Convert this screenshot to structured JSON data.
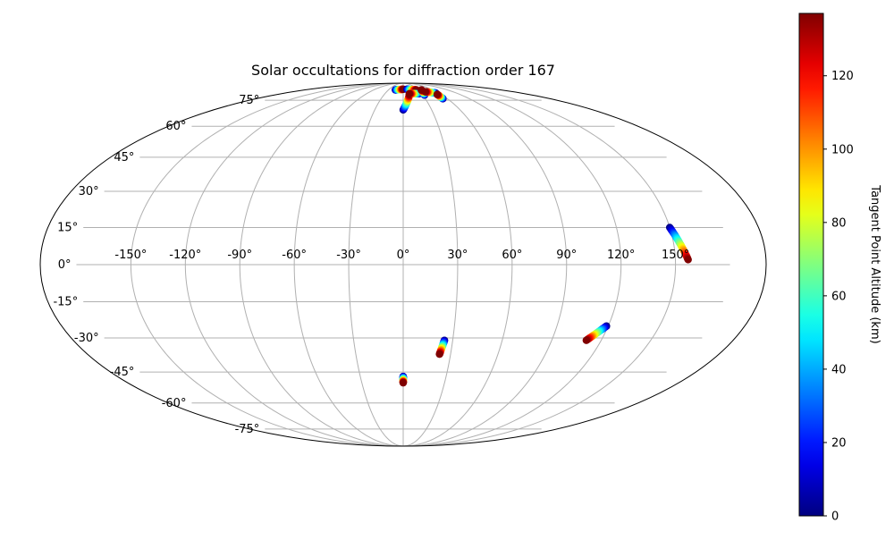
{
  "chart_data": {
    "type": "scatter",
    "projection": "mollweide",
    "title": "Solar occultations for diffraction order 167",
    "grid": true,
    "lon_ticks": [
      -150,
      -120,
      -90,
      -60,
      -30,
      0,
      30,
      60,
      90,
      120,
      150
    ],
    "lon_tick_labels": [
      "-150°",
      "-120°",
      "-90°",
      "-60°",
      "-30°",
      "0°",
      "30°",
      "60°",
      "90°",
      "120°",
      "150°"
    ],
    "lat_ticks": [
      -75,
      -60,
      -45,
      -30,
      -15,
      0,
      15,
      30,
      45,
      60,
      75
    ],
    "lat_tick_labels": [
      "-75°",
      "-60°",
      "-45°",
      "-30°",
      "-15°",
      "0°",
      "15°",
      "30°",
      "45°",
      "60°",
      "75°"
    ],
    "colorbar": {
      "label": "Tangent Point Altitude (km)",
      "colormap": "jet",
      "min": 0,
      "max": 137,
      "ticks": [
        0,
        20,
        40,
        60,
        80,
        100,
        120
      ],
      "tick_labels": [
        "0",
        "20",
        "40",
        "60",
        "80",
        "100",
        "120"
      ]
    },
    "tracks": [
      {
        "lon_start": -16,
        "lat_start": 82.5,
        "alt_start": 0,
        "lon_end": 0,
        "lat_end": 83.0,
        "alt_end": 137
      },
      {
        "lon_start": 0,
        "lat_start": 69,
        "alt_start": 0,
        "lon_end": 10,
        "lat_end": 79,
        "alt_end": 137
      },
      {
        "lon_start": 8,
        "lat_start": 83,
        "alt_start": 0,
        "lon_end": 27,
        "lat_end": 82.5,
        "alt_end": 137
      },
      {
        "lon_start": 26,
        "lat_start": 79.5,
        "alt_start": 0,
        "lon_end": 10,
        "lat_end": 79.5,
        "alt_end": 137
      },
      {
        "lon_start": 33,
        "lat_start": 78.5,
        "alt_start": 0,
        "lon_end": 37,
        "lat_end": 82.5,
        "alt_end": 137
      },
      {
        "lon_start": 55,
        "lat_start": 80,
        "alt_start": 0,
        "lon_end": 40,
        "lat_end": 81,
        "alt_end": 137
      },
      {
        "lon_start": 54,
        "lat_start": 76,
        "alt_start": 0,
        "lon_end": 54,
        "lat_end": 79,
        "alt_end": 137
      },
      {
        "lon_start": 150,
        "lat_start": 15,
        "alt_start": 0,
        "lon_end": 157,
        "lat_end": 2,
        "alt_end": 137
      },
      {
        "lon_start": 119,
        "lat_start": -25,
        "alt_start": 0,
        "lon_end": 111,
        "lat_end": -31,
        "alt_end": 137
      },
      {
        "lon_start": 25,
        "lat_start": -31,
        "alt_start": 0,
        "lon_end": 23,
        "lat_end": -37,
        "alt_end": 137
      },
      {
        "lon_start": 0,
        "lat_start": -47,
        "alt_start": 0,
        "lon_end": 0,
        "lat_end": -50,
        "alt_end": 137
      }
    ]
  }
}
